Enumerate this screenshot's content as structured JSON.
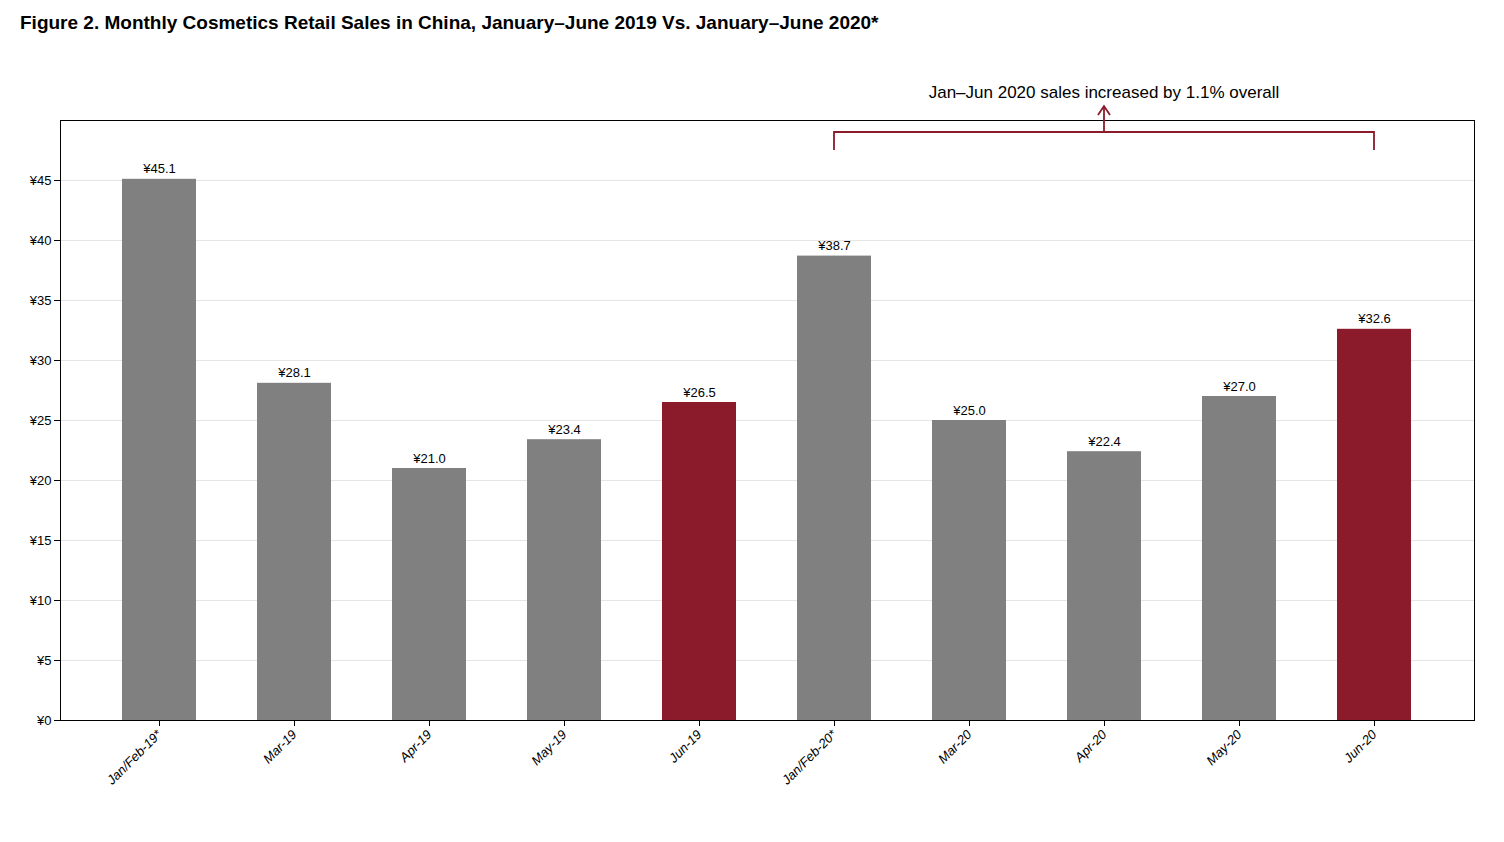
{
  "chart_data": {
    "type": "bar",
    "title": "Figure 2. Monthly Cosmetics Retail Sales in China, January–June 2019 Vs. January–June 2020*",
    "categories": [
      "Jan/Feb-19*",
      "Mar-19",
      "Apr-19",
      "May-19",
      "Jun-19",
      "Jan/Feb-20*",
      "Mar-20",
      "Apr-20",
      "May-20",
      "Jun-20"
    ],
    "values": [
      45.1,
      28.1,
      21.0,
      23.4,
      26.5,
      38.7,
      25.0,
      22.4,
      27.0,
      32.6
    ],
    "colors": [
      "#808080",
      "#808080",
      "#808080",
      "#808080",
      "#8B1A2A",
      "#808080",
      "#808080",
      "#808080",
      "#808080",
      "#8B1A2A"
    ],
    "value_labels": [
      "¥45.1",
      "¥28.1",
      "¥21.0",
      "¥23.4",
      "¥26.5",
      "¥38.7",
      "¥25.0",
      "¥22.4",
      "¥27.0",
      "¥32.6"
    ],
    "data_labels": true,
    "ylim": [
      0,
      50
    ],
    "yticks": [
      {
        "value": 0,
        "label": "¥0"
      },
      {
        "value": 5,
        "label": "¥5"
      },
      {
        "value": 10,
        "label": "¥10"
      },
      {
        "value": 15,
        "label": "¥15"
      },
      {
        "value": 20,
        "label": "¥20"
      },
      {
        "value": 25,
        "label": "¥25"
      },
      {
        "value": 30,
        "label": "¥30"
      },
      {
        "value": 35,
        "label": "¥35"
      },
      {
        "value": 40,
        "label": "¥40"
      },
      {
        "value": 45,
        "label": "¥45"
      }
    ],
    "grid": true,
    "annotation": "Jan–Jun 2020 sales increased by 1.1% overall"
  }
}
